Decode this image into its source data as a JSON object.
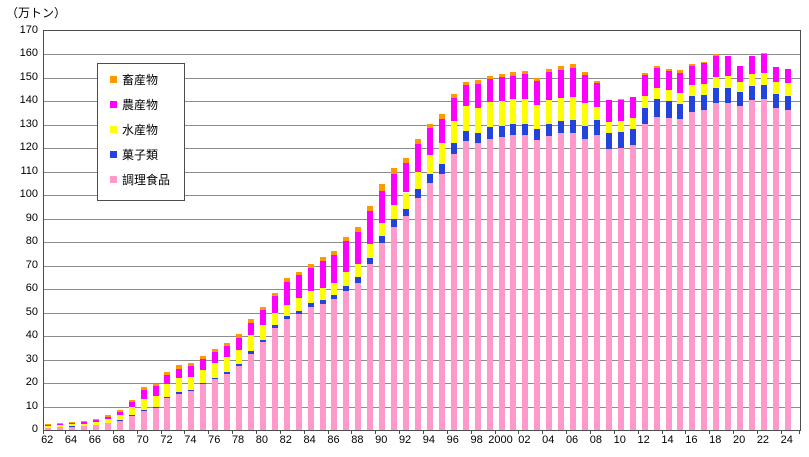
{
  "chart": {
    "unit_label": "（万トン）"
  },
  "chart_data": {
    "type": "bar",
    "stacked": true,
    "title": "",
    "ylabel_unit": "（万トン）",
    "ylim": [
      0,
      170
    ],
    "y_tick_step": 10,
    "grid": "horizontal",
    "legend_position": "inside-upper-left",
    "legend_order_top_to_bottom": [
      "畜産物",
      "農産物",
      "水産物",
      "菓子類",
      "調理食品"
    ],
    "x": [
      1962,
      1963,
      1964,
      1965,
      1966,
      1967,
      1968,
      1969,
      1970,
      1971,
      1972,
      1973,
      1974,
      1975,
      1976,
      1977,
      1978,
      1979,
      1980,
      1981,
      1982,
      1983,
      1984,
      1985,
      1986,
      1987,
      1988,
      1989,
      1990,
      1991,
      1992,
      1993,
      1994,
      1995,
      1996,
      1997,
      1998,
      1999,
      2000,
      2001,
      2002,
      2003,
      2004,
      2005,
      2006,
      2007,
      2008,
      2009,
      2010,
      2011,
      2012,
      2013,
      2014,
      2015,
      2016,
      2017,
      2018,
      2019,
      2020,
      2021,
      2022,
      2023,
      2024
    ],
    "x_tick_labels": [
      "62",
      "64",
      "66",
      "68",
      "70",
      "72",
      "74",
      "76",
      "78",
      "80",
      "82",
      "84",
      "86",
      "88",
      "90",
      "92",
      "94",
      "96",
      "98",
      "2000",
      "02",
      "04",
      "06",
      "08",
      "10",
      "12",
      "14",
      "16",
      "18",
      "20",
      "22",
      "24"
    ],
    "series": [
      {
        "name": "調理食品",
        "color": "#FF99CC",
        "values": [
          0.9,
          1.1,
          1.4,
          1.6,
          2.0,
          2.8,
          3.8,
          6.0,
          8.1,
          9.2,
          13.5,
          15.5,
          16.6,
          19.5,
          21.6,
          24.0,
          27.2,
          32.5,
          37.4,
          43.5,
          47.2,
          49.3,
          52.4,
          53.5,
          55.7,
          59.2,
          62.7,
          70.8,
          79.8,
          86.7,
          91.1,
          99.0,
          105.3,
          109.2,
          117.8,
          123.1,
          122.1,
          124.2,
          124.7,
          125.9,
          125.6,
          123.6,
          125.3,
          126.5,
          126.7,
          124.2,
          125.5,
          119.9,
          120.3,
          121.5,
          130.3,
          133.5,
          132.8,
          132.4,
          135.6,
          136.2,
          139.2,
          139.5,
          137.9,
          140.7,
          141.0,
          137.1,
          136.5
        ]
      },
      {
        "name": "菓子類",
        "color": "#2244DD",
        "values": [
          0.1,
          0.1,
          0.1,
          0.15,
          0.2,
          0.25,
          0.3,
          0.4,
          0.5,
          0.6,
          0.5,
          0.5,
          0.5,
          0.6,
          0.7,
          0.8,
          1.0,
          1.2,
          1.0,
          1.2,
          1.4,
          1.4,
          1.7,
          1.7,
          1.8,
          2.1,
          2.4,
          2.6,
          2.9,
          3.0,
          3.2,
          3.5,
          3.8,
          4.0,
          4.3,
          4.3,
          4.6,
          4.9,
          4.7,
          4.6,
          4.7,
          4.5,
          5.0,
          5.2,
          5.4,
          5.4,
          6.5,
          6.5,
          6.6,
          6.8,
          6.7,
          7.5,
          7.4,
          6.6,
          6.7,
          6.5,
          6.4,
          6.4,
          6.2,
          5.9,
          5.9,
          5.9,
          6.0
        ]
      },
      {
        "name": "水産物",
        "color": "#FFFF00",
        "values": [
          0.7,
          0.8,
          0.9,
          1.0,
          1.2,
          1.6,
          2.2,
          3.3,
          4.5,
          4.6,
          5.5,
          6.0,
          5.5,
          5.3,
          6.4,
          6.3,
          6.1,
          6.6,
          6.2,
          5.0,
          4.7,
          5.4,
          5.1,
          5.1,
          5.2,
          6.1,
          5.7,
          6.0,
          5.7,
          6.3,
          6.9,
          7.5,
          8.2,
          8.9,
          9.5,
          10.6,
          10.6,
          10.7,
          10.7,
          10.4,
          10.7,
          10.2,
          10.3,
          9.9,
          9.9,
          9.9,
          5.7,
          4.8,
          4.7,
          4.5,
          5.1,
          4.6,
          4.6,
          4.7,
          4.7,
          4.9,
          5.0,
          5.0,
          4.0,
          5.0,
          5.3,
          5.3,
          5.4
        ]
      },
      {
        "name": "農産物",
        "color": "#FF00FF",
        "values": [
          0.3,
          0.4,
          0.5,
          0.55,
          0.7,
          1.0,
          1.4,
          2.3,
          4.0,
          4.3,
          4.1,
          4.2,
          4.5,
          4.7,
          4.5,
          4.5,
          4.7,
          5.1,
          6.4,
          7.3,
          9.9,
          9.8,
          9.7,
          11.7,
          11.8,
          13.1,
          13.6,
          13.8,
          13.6,
          13.0,
          12.4,
          11.8,
          11.2,
          10.6,
          10.0,
          9.0,
          10.3,
          9.6,
          10.1,
          10.1,
          10.6,
          10.4,
          11.9,
          12.0,
          12.3,
          11.6,
          10.0,
          9.3,
          9.0,
          9.2,
          9.1,
          8.6,
          8.0,
          8.6,
          8.2,
          8.6,
          8.7,
          8.6,
          6.9,
          7.9,
          7.8,
          6.2,
          6.1
        ]
      },
      {
        "name": "畜産物",
        "color": "#FF9900",
        "values": [
          0.3,
          0.3,
          0.4,
          0.4,
          0.5,
          0.65,
          0.8,
          1.0,
          1.4,
          1.0,
          1.1,
          1.3,
          1.3,
          1.4,
          1.4,
          1.6,
          1.7,
          2.0,
          1.4,
          1.3,
          1.7,
          1.5,
          1.7,
          1.7,
          1.7,
          1.8,
          2.0,
          2.2,
          2.7,
          2.5,
          2.4,
          2.2,
          2.0,
          1.8,
          1.4,
          1.4,
          1.4,
          1.4,
          1.6,
          1.5,
          1.4,
          1.4,
          1.5,
          1.5,
          1.5,
          1.4,
          0.8,
          0,
          0.4,
          0,
          0.8,
          0.8,
          1.2,
          1.2,
          0.8,
          0.8,
          0.7,
          0,
          0,
          0,
          0.5,
          0,
          0
        ]
      }
    ]
  }
}
